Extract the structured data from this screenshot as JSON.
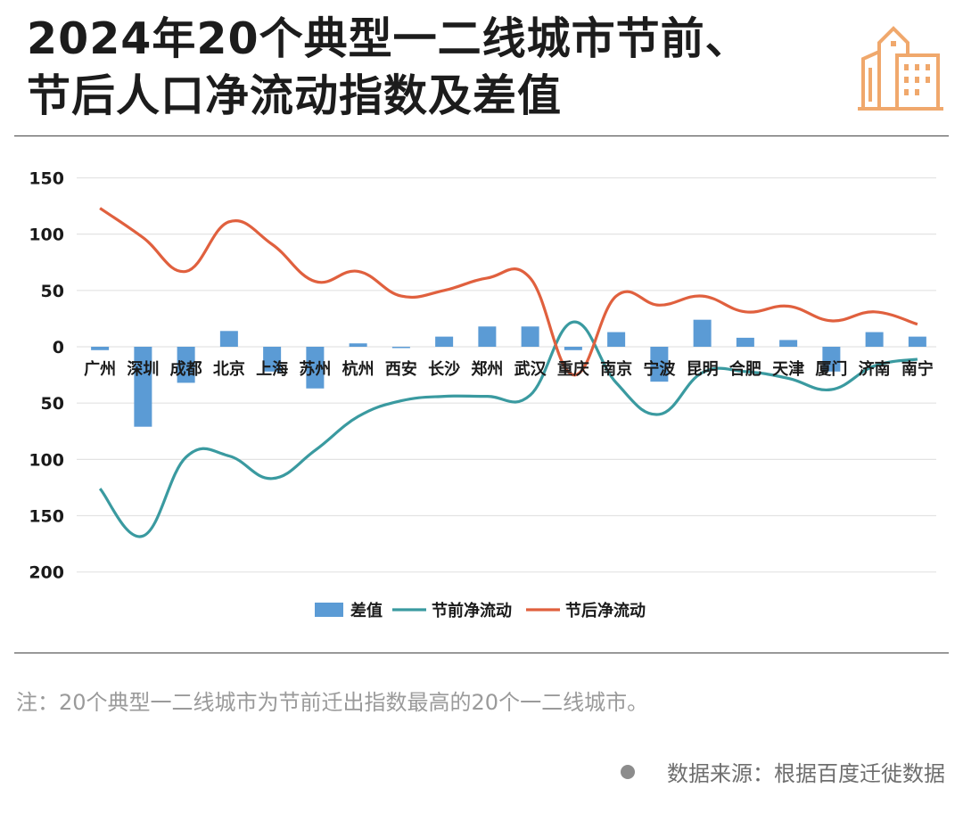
{
  "title": {
    "line1": "2024年20个典型一二线城市节前、",
    "line2": "节后人口净流动指数及差值"
  },
  "footnote": "注：20个典型一二线城市为节前迁出指数最高的20个一二线城市。",
  "source": "数据来源：根据百度迁徙数据",
  "colors": {
    "bar": "#5b9bd5",
    "pre_line": "#3a9aa0",
    "post_line": "#e0603e",
    "logo": "#f0a86c",
    "grid": "#e3e3e3"
  },
  "chart_data": {
    "type": "bar",
    "categories": [
      "广州",
      "深圳",
      "成都",
      "北京",
      "上海",
      "苏州",
      "杭州",
      "西安",
      "长沙",
      "郑州",
      "武汉",
      "重庆",
      "南京",
      "宁波",
      "昆明",
      "合肥",
      "天津",
      "厦门",
      "济南",
      "南宁"
    ],
    "ytick_labels": [
      "150",
      "100",
      "50",
      "0",
      "50",
      "100",
      "150",
      "200"
    ],
    "ytick_values": [
      150,
      100,
      50,
      0,
      -50,
      -100,
      -150,
      -200
    ],
    "ylim": [
      -200,
      150
    ],
    "grid": true,
    "legend_position": "bottom",
    "series": [
      {
        "name": "差值",
        "type": "bar",
        "values": [
          -3,
          -71,
          -32,
          14,
          -22,
          -37,
          3,
          -1,
          9,
          18,
          18,
          -3,
          13,
          -31,
          24,
          8,
          6,
          -22,
          13,
          9
        ]
      },
      {
        "name": "节前净流动",
        "type": "line",
        "values": [
          -126,
          -168,
          -98,
          -97,
          -117,
          -92,
          -62,
          -48,
          -44,
          -44,
          -43,
          22,
          -32,
          -60,
          -23,
          -22,
          -28,
          -38,
          -17,
          -11
        ]
      },
      {
        "name": "节后净流动",
        "type": "line",
        "values": [
          123,
          97,
          67,
          111,
          91,
          58,
          67,
          45,
          50,
          61,
          61,
          -25,
          45,
          37,
          45,
          31,
          36,
          23,
          31,
          20
        ]
      }
    ]
  }
}
